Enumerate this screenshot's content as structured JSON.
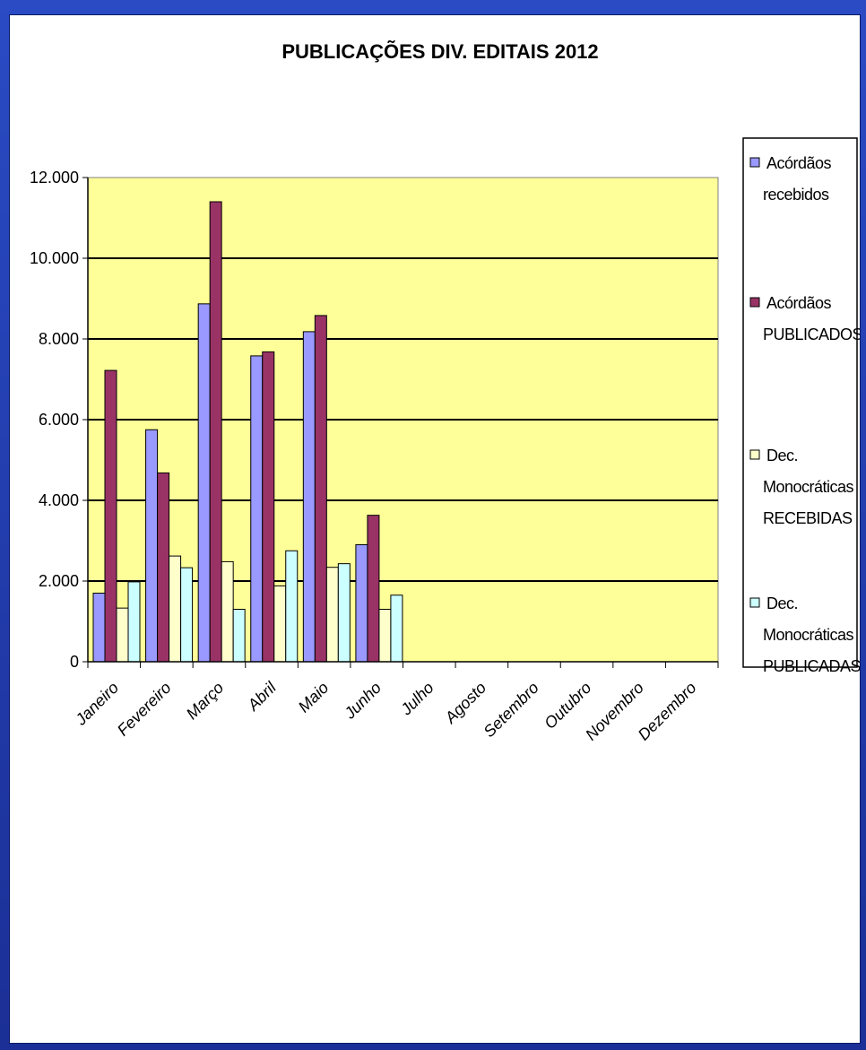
{
  "chart_data": {
    "type": "bar",
    "title": "PUBLICAÇÕES DIV. EDITAIS 2012",
    "xlabel": "",
    "ylabel": "",
    "ylim": [
      0,
      12000
    ],
    "y_ticks": [
      "0",
      "2.000",
      "4.000",
      "6.000",
      "8.000",
      "10.000",
      "12.000"
    ],
    "categories": [
      "Janeiro",
      "Fevereiro",
      "Março",
      "Abril",
      "Maio",
      "Junho",
      "Julho",
      "Agosto",
      "Setembro",
      "Outubro",
      "Novembro",
      "Dezembro"
    ],
    "series": [
      {
        "name": "Acórdãos recebidos",
        "legend_lines": [
          "Acórdãos",
          "recebidos"
        ],
        "color": "#9999ff",
        "values": [
          1700,
          5750,
          8870,
          7580,
          8180,
          2900,
          null,
          null,
          null,
          null,
          null,
          null
        ]
      },
      {
        "name": "Acórdãos PUBLICADOS",
        "legend_lines": [
          "Acórdãos",
          "PUBLICADOS"
        ],
        "color": "#993366",
        "values": [
          7220,
          4680,
          11400,
          7680,
          8580,
          3630,
          null,
          null,
          null,
          null,
          null,
          null
        ]
      },
      {
        "name": "Dec. Monocráticas RECEBIDAS",
        "legend_lines": [
          "Dec.",
          "Monocráticas",
          "RECEBIDAS"
        ],
        "color": "#ffffcc",
        "values": [
          1330,
          2620,
          2480,
          1880,
          2340,
          1300,
          null,
          null,
          null,
          null,
          null,
          null
        ]
      },
      {
        "name": "Dec. Monocráticas PUBLICADAS",
        "legend_lines": [
          "Dec.",
          "Monocráticas",
          "PUBLICADAS"
        ],
        "color": "#ccffff",
        "values": [
          1980,
          2330,
          1300,
          2750,
          2430,
          1650,
          null,
          null,
          null,
          null,
          null,
          null
        ]
      }
    ],
    "grid": true,
    "plot_background": "#ffff99",
    "legend_position": "right"
  }
}
